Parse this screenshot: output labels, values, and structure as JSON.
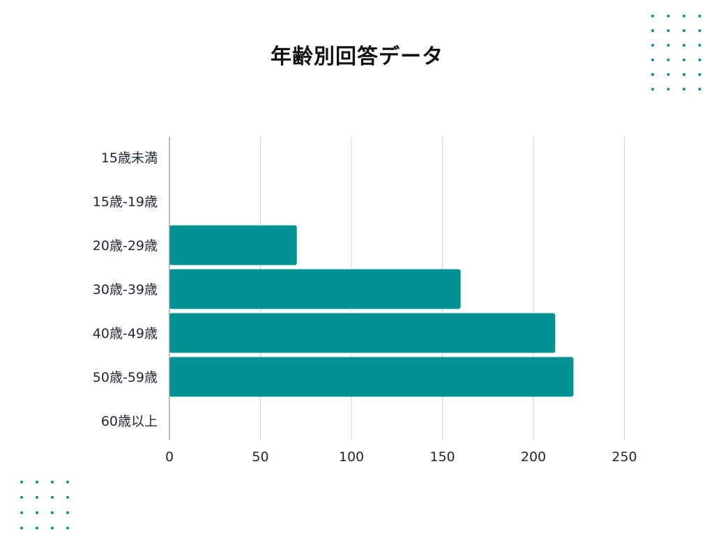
{
  "chart_data": {
    "type": "bar",
    "orientation": "horizontal",
    "title": "年齢別回答データ",
    "xlabel": "",
    "ylabel": "",
    "categories": [
      "15歳未満",
      "15歳-19歳",
      "20歳-29歳",
      "30歳-39歳",
      "40歳-49歳",
      "50歳-59歳",
      "60歳以上"
    ],
    "values": [
      0,
      0,
      70,
      160,
      212,
      222,
      0
    ],
    "xlim": [
      0,
      250
    ],
    "x_ticks": [
      "0",
      "50",
      "100",
      "150",
      "200",
      "250"
    ],
    "grid": "vertical",
    "bar_color": "#009193"
  },
  "colors": {
    "bar": "#009193",
    "grid": "#d3d3d3",
    "text": "#1f2533",
    "dots": "#009193"
  }
}
